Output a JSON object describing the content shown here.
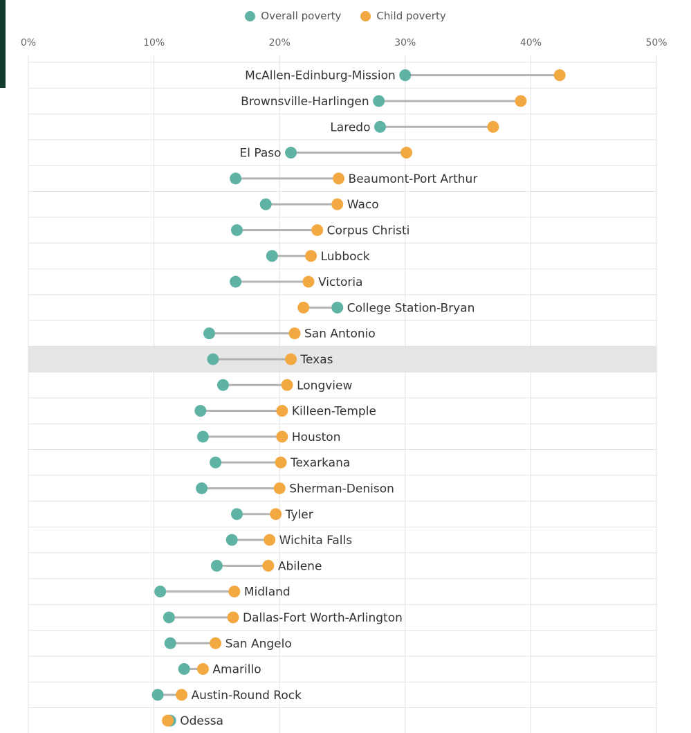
{
  "chart_data": {
    "type": "dumbbell",
    "title": "",
    "xlabel": "",
    "ylabel": "",
    "xlim": [
      0,
      50
    ],
    "x_ticks": [
      "0%",
      "10%",
      "20%",
      "30%",
      "40%",
      "50%"
    ],
    "grid": true,
    "legend_placement": "top-center",
    "series": [
      {
        "name": "Overall poverty",
        "color": "#5fb3a5"
      },
      {
        "name": "Child poverty",
        "color": "#f2a942"
      }
    ],
    "highlighted_category": "Texas",
    "categories": [
      "McAllen-Edinburg-Mission",
      "Brownsville-Harlingen",
      "Laredo",
      "El Paso",
      "Beaumont-Port Arthur",
      "Waco",
      "Corpus Christi",
      "Lubbock",
      "Victoria",
      "College Station-Bryan",
      "San Antonio",
      "Texas",
      "Longview",
      "Killeen-Temple",
      "Houston",
      "Texarkana",
      "Sherman-Denison",
      "Tyler",
      "Wichita Falls",
      "Abilene",
      "Midland",
      "Dallas-Fort Worth-Arlington",
      "San Angelo",
      "Amarillo",
      "Austin-Round Rock",
      "Odessa"
    ],
    "overall": [
      30.0,
      27.9,
      28.0,
      20.9,
      16.5,
      18.9,
      16.6,
      19.4,
      16.5,
      24.6,
      14.4,
      14.7,
      15.5,
      13.7,
      13.9,
      14.9,
      13.8,
      16.6,
      16.2,
      15.0,
      10.5,
      11.2,
      11.3,
      12.4,
      10.3,
      11.3
    ],
    "child": [
      42.3,
      39.2,
      37.0,
      30.1,
      24.7,
      24.6,
      23.0,
      22.5,
      22.3,
      21.9,
      21.2,
      20.9,
      20.6,
      20.2,
      20.2,
      20.1,
      20.0,
      19.7,
      19.2,
      19.1,
      16.4,
      16.3,
      14.9,
      13.9,
      12.2,
      11.1
    ]
  }
}
